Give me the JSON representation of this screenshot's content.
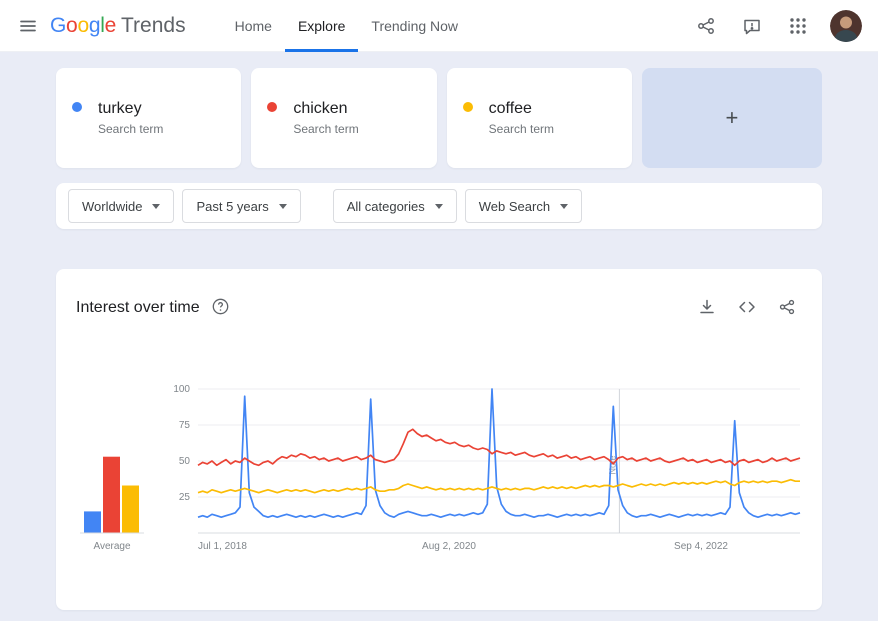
{
  "colors": {
    "blue": "#4285F4",
    "red": "#EA4335",
    "yellow": "#FBBC04",
    "green": "#34A853",
    "active_tab_underline": "#1a73e8",
    "gray_text": "#5F6368"
  },
  "header": {
    "logo": {
      "letters": [
        {
          "char": "G",
          "color": "#4285F4"
        },
        {
          "char": "o",
          "color": "#EA4335"
        },
        {
          "char": "o",
          "color": "#FBBC04"
        },
        {
          "char": "g",
          "color": "#4285F4"
        },
        {
          "char": "l",
          "color": "#34A853"
        },
        {
          "char": "e",
          "color": "#EA4335"
        }
      ],
      "product": "Trends"
    },
    "nav": [
      {
        "label": "Home",
        "active": false
      },
      {
        "label": "Explore",
        "active": true
      },
      {
        "label": "Trending Now",
        "active": false
      }
    ]
  },
  "compare": {
    "terms": [
      {
        "term": "turkey",
        "type": "Search term",
        "color": "#4285F4"
      },
      {
        "term": "chicken",
        "type": "Search term",
        "color": "#EA4335"
      },
      {
        "term": "coffee",
        "type": "Search term",
        "color": "#FBBC04"
      }
    ],
    "add_label": "+"
  },
  "filters": {
    "region": "Worldwide",
    "time": "Past 5 years",
    "category": "All categories",
    "search_type": "Web Search"
  },
  "widget": {
    "title": "Interest over time"
  },
  "chart_data": {
    "type": "line",
    "title": "Interest over time",
    "ylim": [
      0,
      100
    ],
    "yticks": [
      25,
      50,
      75,
      100
    ],
    "xticks": [
      "Jul 1, 2018",
      "Aug 2, 2020",
      "Sep 4, 2022"
    ],
    "x_range": [
      "Jul 1, 2018",
      "Jun 2023"
    ],
    "grid": true,
    "legend": "none",
    "note_label": "Note",
    "note_position": 0.7,
    "series": [
      {
        "name": "turkey",
        "color": "#4285F4",
        "values": [
          11,
          12,
          11,
          13,
          12,
          11,
          12,
          13,
          14,
          18,
          95,
          28,
          18,
          15,
          12,
          11,
          12,
          11,
          12,
          13,
          12,
          11,
          12,
          11,
          12,
          11,
          12,
          13,
          12,
          11,
          12,
          11,
          12,
          13,
          14,
          13,
          19,
          93,
          30,
          19,
          14,
          12,
          11,
          13,
          14,
          15,
          14,
          13,
          12,
          12,
          13,
          12,
          11,
          12,
          13,
          12,
          13,
          12,
          13,
          14,
          13,
          14,
          20,
          100,
          32,
          20,
          15,
          13,
          12,
          12,
          13,
          12,
          11,
          12,
          12,
          13,
          12,
          11,
          12,
          13,
          12,
          13,
          12,
          13,
          12,
          13,
          14,
          13,
          19,
          88,
          30,
          19,
          14,
          12,
          11,
          12,
          12,
          13,
          12,
          11,
          12,
          13,
          12,
          11,
          12,
          13,
          12,
          13,
          12,
          13,
          12,
          13,
          14,
          13,
          18,
          78,
          28,
          18,
          14,
          12,
          11,
          12,
          13,
          12,
          13,
          12,
          13,
          14,
          13,
          14
        ]
      },
      {
        "name": "chicken",
        "color": "#EA4335",
        "values": [
          47,
          49,
          48,
          50,
          47,
          49,
          51,
          48,
          50,
          49,
          52,
          50,
          48,
          47,
          49,
          50,
          48,
          51,
          53,
          52,
          54,
          53,
          55,
          54,
          52,
          53,
          51,
          52,
          50,
          51,
          52,
          50,
          51,
          52,
          53,
          51,
          52,
          54,
          51,
          50,
          49,
          50,
          51,
          55,
          62,
          70,
          72,
          69,
          67,
          68,
          66,
          64,
          65,
          63,
          62,
          63,
          61,
          60,
          61,
          59,
          58,
          59,
          58,
          55,
          57,
          56,
          55,
          56,
          54,
          55,
          56,
          54,
          53,
          54,
          55,
          53,
          54,
          52,
          53,
          54,
          52,
          53,
          51,
          52,
          53,
          51,
          52,
          53,
          51,
          48,
          52,
          53,
          51,
          52,
          50,
          51,
          52,
          50,
          51,
          52,
          50,
          49,
          50,
          51,
          52,
          50,
          51,
          49,
          50,
          51,
          49,
          50,
          51,
          49,
          50,
          47,
          50,
          51,
          49,
          50,
          51,
          49,
          50,
          52,
          50,
          51,
          52,
          50,
          51,
          52
        ]
      },
      {
        "name": "coffee",
        "color": "#FBBC04",
        "values": [
          28,
          29,
          28,
          30,
          29,
          28,
          29,
          30,
          29,
          30,
          31,
          30,
          29,
          28,
          29,
          30,
          29,
          28,
          29,
          30,
          29,
          30,
          29,
          30,
          29,
          28,
          29,
          30,
          29,
          30,
          29,
          30,
          31,
          30,
          31,
          30,
          31,
          32,
          30,
          29,
          29,
          30,
          30,
          31,
          33,
          34,
          33,
          32,
          31,
          32,
          31,
          30,
          31,
          30,
          31,
          30,
          31,
          30,
          31,
          30,
          31,
          30,
          31,
          32,
          31,
          30,
          31,
          30,
          31,
          30,
          31,
          31,
          30,
          31,
          32,
          31,
          32,
          31,
          32,
          31,
          32,
          31,
          32,
          33,
          32,
          33,
          32,
          33,
          33,
          32,
          33,
          34,
          33,
          32,
          33,
          34,
          33,
          34,
          33,
          34,
          33,
          34,
          35,
          34,
          35,
          34,
          35,
          34,
          35,
          34,
          35,
          36,
          35,
          36,
          34,
          33,
          35,
          36,
          35,
          36,
          35,
          36,
          35,
          36,
          36,
          35,
          36,
          37,
          36,
          36
        ]
      }
    ],
    "average": {
      "label": "Average",
      "bars": [
        {
          "name": "turkey",
          "color": "#4285F4",
          "value": 15
        },
        {
          "name": "chicken",
          "color": "#EA4335",
          "value": 53
        },
        {
          "name": "coffee",
          "color": "#FBBC04",
          "value": 33
        }
      ]
    }
  }
}
